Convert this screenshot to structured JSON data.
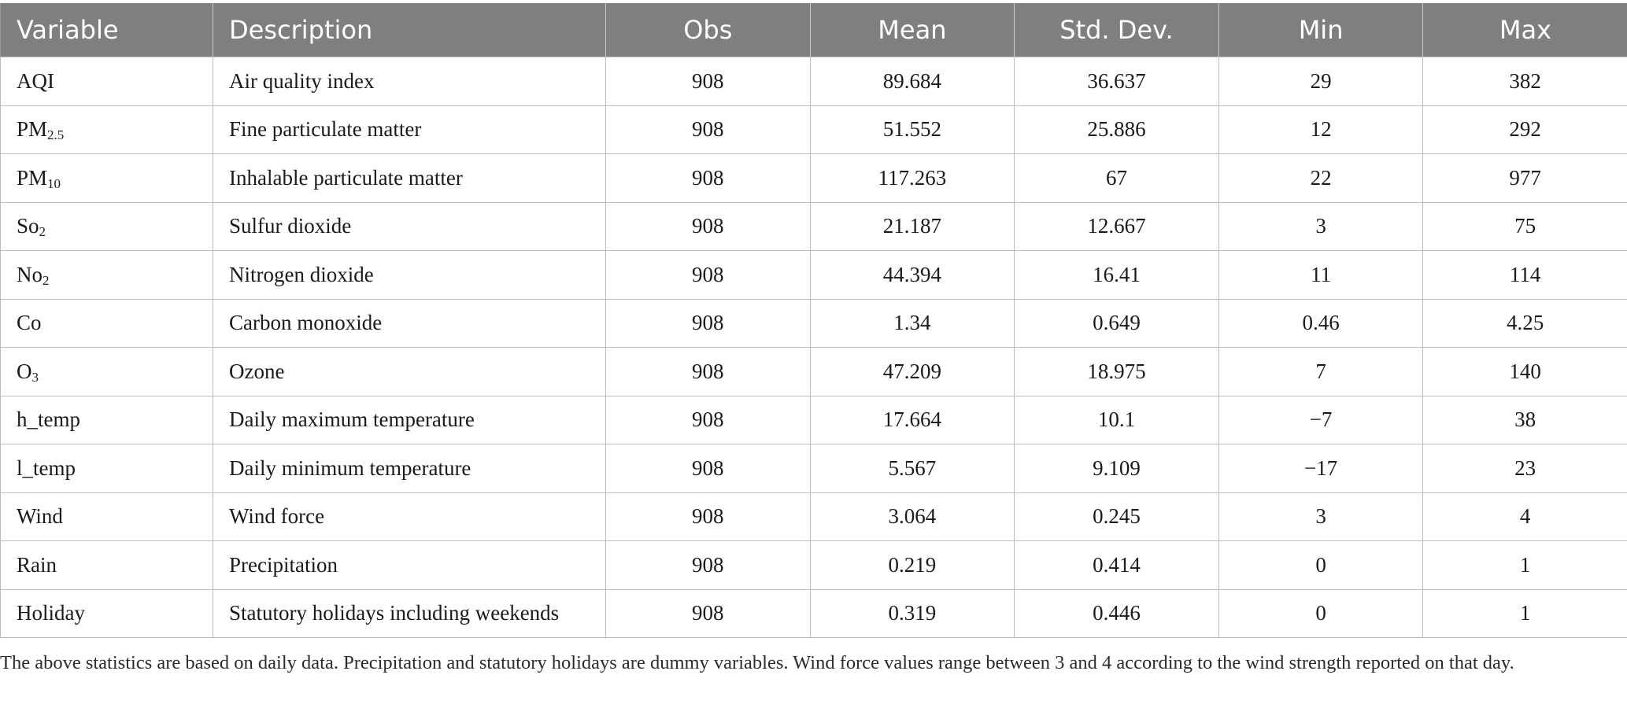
{
  "table": {
    "headers": {
      "variable": "Variable",
      "description": "Description",
      "obs": "Obs",
      "mean": "Mean",
      "std_dev": "Std. Dev.",
      "min": "Min",
      "max": "Max"
    },
    "rows": [
      {
        "var_main": "AQI",
        "var_sub": "",
        "description": "Air quality index",
        "obs": "908",
        "mean": "89.684",
        "std_dev": "36.637",
        "min": "29",
        "max": "382"
      },
      {
        "var_main": "PM",
        "var_sub": "2.5",
        "description": "Fine particulate matter",
        "obs": "908",
        "mean": "51.552",
        "std_dev": "25.886",
        "min": "12",
        "max": "292"
      },
      {
        "var_main": "PM",
        "var_sub": "10",
        "description": "Inhalable particulate matter",
        "obs": "908",
        "mean": "117.263",
        "std_dev": "67",
        "min": "22",
        "max": "977"
      },
      {
        "var_main": "So",
        "var_sub": "2",
        "description": "Sulfur dioxide",
        "obs": "908",
        "mean": "21.187",
        "std_dev": "12.667",
        "min": "3",
        "max": "75"
      },
      {
        "var_main": "No",
        "var_sub": "2",
        "description": "Nitrogen dioxide",
        "obs": "908",
        "mean": "44.394",
        "std_dev": "16.41",
        "min": "11",
        "max": "114"
      },
      {
        "var_main": "Co",
        "var_sub": "",
        "description": "Carbon monoxide",
        "obs": "908",
        "mean": "1.34",
        "std_dev": "0.649",
        "min": "0.46",
        "max": "4.25"
      },
      {
        "var_main": "O",
        "var_sub": "3",
        "description": "Ozone",
        "obs": "908",
        "mean": "47.209",
        "std_dev": "18.975",
        "min": "7",
        "max": "140"
      },
      {
        "var_main": "h_temp",
        "var_sub": "",
        "description": "Daily maximum temperature",
        "obs": "908",
        "mean": "17.664",
        "std_dev": "10.1",
        "min": "−7",
        "max": "38"
      },
      {
        "var_main": "l_temp",
        "var_sub": "",
        "description": "Daily minimum temperature",
        "obs": "908",
        "mean": "5.567",
        "std_dev": "9.109",
        "min": "−17",
        "max": "23"
      },
      {
        "var_main": "Wind",
        "var_sub": "",
        "description": "Wind force",
        "obs": "908",
        "mean": "3.064",
        "std_dev": "0.245",
        "min": "3",
        "max": "4"
      },
      {
        "var_main": "Rain",
        "var_sub": "",
        "description": "Precipitation",
        "obs": "908",
        "mean": "0.219",
        "std_dev": "0.414",
        "min": "0",
        "max": "1"
      },
      {
        "var_main": "Holiday",
        "var_sub": "",
        "description": "Statutory holidays including weekends",
        "obs": "908",
        "mean": "0.319",
        "std_dev": "0.446",
        "min": "0",
        "max": "1"
      }
    ]
  },
  "footnote": "The above statistics are based on daily data. Precipitation and statutory holidays are dummy variables. Wind force values range between 3 and 4 according to the wind strength reported on that day.",
  "colors": {
    "header_bg": "#7f7f7f",
    "header_text": "#ffffff",
    "grid": "#bdbdbd"
  }
}
